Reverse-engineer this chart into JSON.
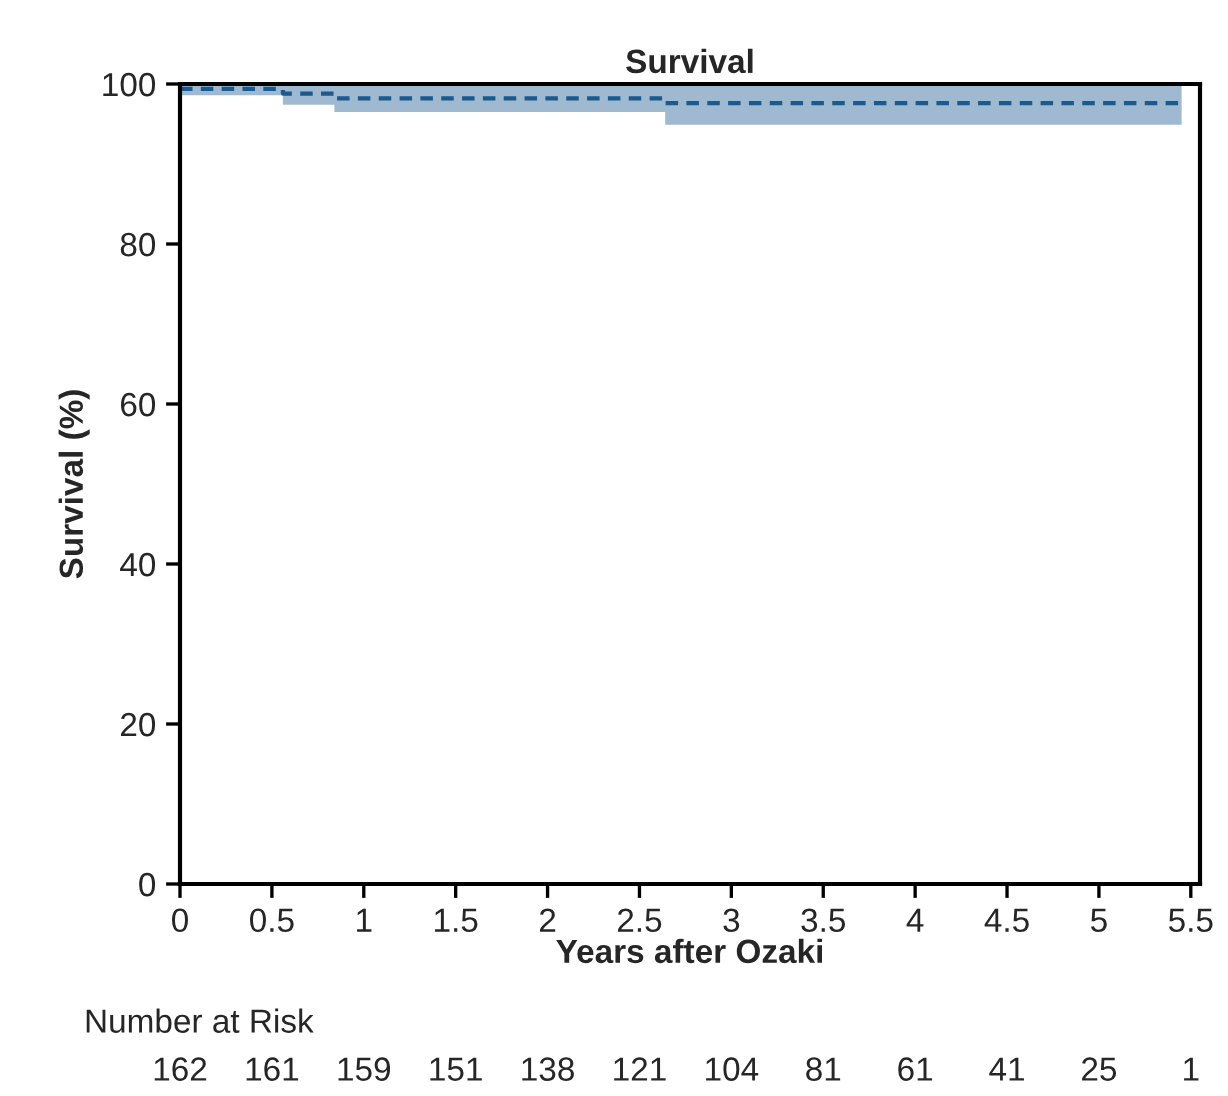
{
  "chart_data": {
    "type": "step",
    "title": "Survival",
    "xlabel": "Years after Ozaki",
    "ylabel": "Survival (%)",
    "series": [
      {
        "color": "#1a5a8e",
        "line_style": "dashed",
        "x": [
          0,
          0.56,
          0.84,
          2.64,
          5.45
        ],
        "values": [
          99.4,
          98.8,
          98.2,
          97.6,
          97.6
        ],
        "lower": [
          98.6,
          97.4,
          96.5,
          94.9,
          94.9
        ],
        "upper": [
          100,
          100,
          100,
          100,
          100
        ]
      }
    ],
    "xlim": [
      0,
      5.55
    ],
    "xticks": [
      0,
      0.5,
      1,
      1.5,
      2,
      2.5,
      3,
      3.5,
      4,
      4.5,
      5,
      5.5
    ],
    "ylim": [
      0,
      100
    ],
    "yticks": [
      0,
      20,
      40,
      60,
      80,
      100
    ],
    "grid": false,
    "legend": false,
    "annotations": [
      "Number at Risk",
      "162",
      "161",
      "159",
      "151",
      "138",
      "121",
      "104",
      "81",
      "61",
      "41",
      "25",
      "1"
    ]
  }
}
